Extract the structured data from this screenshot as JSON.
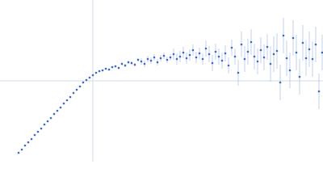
{
  "chart_data": {
    "type": "scatter",
    "x": [
      -0.92,
      -0.88,
      -0.84,
      -0.8,
      -0.76,
      -0.72,
      -0.68,
      -0.64,
      -0.6,
      -0.56,
      -0.52,
      -0.48,
      -0.44,
      -0.4,
      -0.36,
      -0.32,
      -0.28,
      -0.24,
      -0.2,
      -0.16,
      -0.12,
      -0.08,
      -0.04,
      0.0,
      0.04,
      0.08,
      0.12,
      0.16,
      0.2,
      0.24,
      0.28,
      0.32,
      0.36,
      0.4,
      0.44,
      0.48,
      0.52,
      0.56,
      0.6,
      0.64,
      0.68,
      0.72,
      0.76,
      0.8,
      0.84,
      0.88,
      0.92,
      0.96,
      1.0,
      1.04,
      1.08,
      1.12,
      1.16,
      1.2,
      1.24,
      1.28,
      1.32,
      1.36,
      1.4,
      1.44,
      1.48,
      1.52,
      1.56,
      1.6,
      1.64,
      1.68,
      1.72,
      1.76,
      1.8,
      1.84,
      1.88,
      1.92,
      1.96,
      2.0,
      2.04,
      2.08,
      2.12,
      2.16,
      2.2,
      2.24,
      2.28,
      2.32,
      2.36,
      2.4,
      2.44,
      2.48,
      2.52,
      2.56,
      2.6,
      2.64,
      2.68,
      2.72,
      2.76,
      2.8,
      2.84
    ],
    "values": [
      -0.89,
      -0.85,
      -0.8,
      -0.76,
      -0.72,
      -0.67,
      -0.63,
      -0.59,
      -0.54,
      -0.5,
      -0.46,
      -0.41,
      -0.37,
      -0.33,
      -0.28,
      -0.24,
      -0.2,
      -0.15,
      -0.11,
      -0.07,
      -0.02,
      0.01,
      0.04,
      0.07,
      0.1,
      0.12,
      0.13,
      0.15,
      0.14,
      0.17,
      0.18,
      0.16,
      0.21,
      0.19,
      0.23,
      0.22,
      0.2,
      0.26,
      0.24,
      0.21,
      0.27,
      0.25,
      0.29,
      0.23,
      0.28,
      0.31,
      0.26,
      0.29,
      0.33,
      0.27,
      0.3,
      0.35,
      0.28,
      0.32,
      0.38,
      0.29,
      0.34,
      0.27,
      0.4,
      0.33,
      0.22,
      0.36,
      0.3,
      0.25,
      0.34,
      0.19,
      0.41,
      0.3,
      0.1,
      0.45,
      0.27,
      0.36,
      0.48,
      0.3,
      0.24,
      0.38,
      0.29,
      0.42,
      0.21,
      0.33,
      0.37,
      -0.02,
      0.56,
      0.28,
      0.13,
      0.53,
      0.35,
      0.05,
      0.47,
      0.28,
      0.39,
      0.27,
      0.45,
      -0.13,
      0.35
    ],
    "errors": [
      0.005,
      0.005,
      0.005,
      0.005,
      0.005,
      0.005,
      0.005,
      0.005,
      0.005,
      0.005,
      0.005,
      0.005,
      0.005,
      0.005,
      0.005,
      0.005,
      0.005,
      0.005,
      0.005,
      0.005,
      0.005,
      0.005,
      0.005,
      0.01,
      0.01,
      0.01,
      0.01,
      0.01,
      0.01,
      0.01,
      0.01,
      0.02,
      0.02,
      0.02,
      0.02,
      0.02,
      0.02,
      0.02,
      0.04,
      0.04,
      0.04,
      0.04,
      0.04,
      0.04,
      0.04,
      0.04,
      0.04,
      0.04,
      0.07,
      0.07,
      0.07,
      0.07,
      0.07,
      0.07,
      0.07,
      0.07,
      0.07,
      0.07,
      0.1,
      0.1,
      0.1,
      0.1,
      0.1,
      0.1,
      0.1,
      0.1,
      0.1,
      0.1,
      0.16,
      0.16,
      0.16,
      0.16,
      0.16,
      0.16,
      0.16,
      0.16,
      0.16,
      0.16,
      0.22,
      0.22,
      0.22,
      0.22,
      0.22,
      0.22,
      0.22,
      0.22,
      0.22,
      0.22,
      0.22,
      0.22,
      0.22,
      0.22,
      0.22,
      0.22,
      0.22
    ],
    "color": "#3a6bc4",
    "error_color": "#a9bde6",
    "axis_color": "#d2dbe8",
    "xlim": [
      -1.15,
      2.85
    ],
    "ylim": [
      -1,
      1
    ],
    "zero_lines": true
  }
}
